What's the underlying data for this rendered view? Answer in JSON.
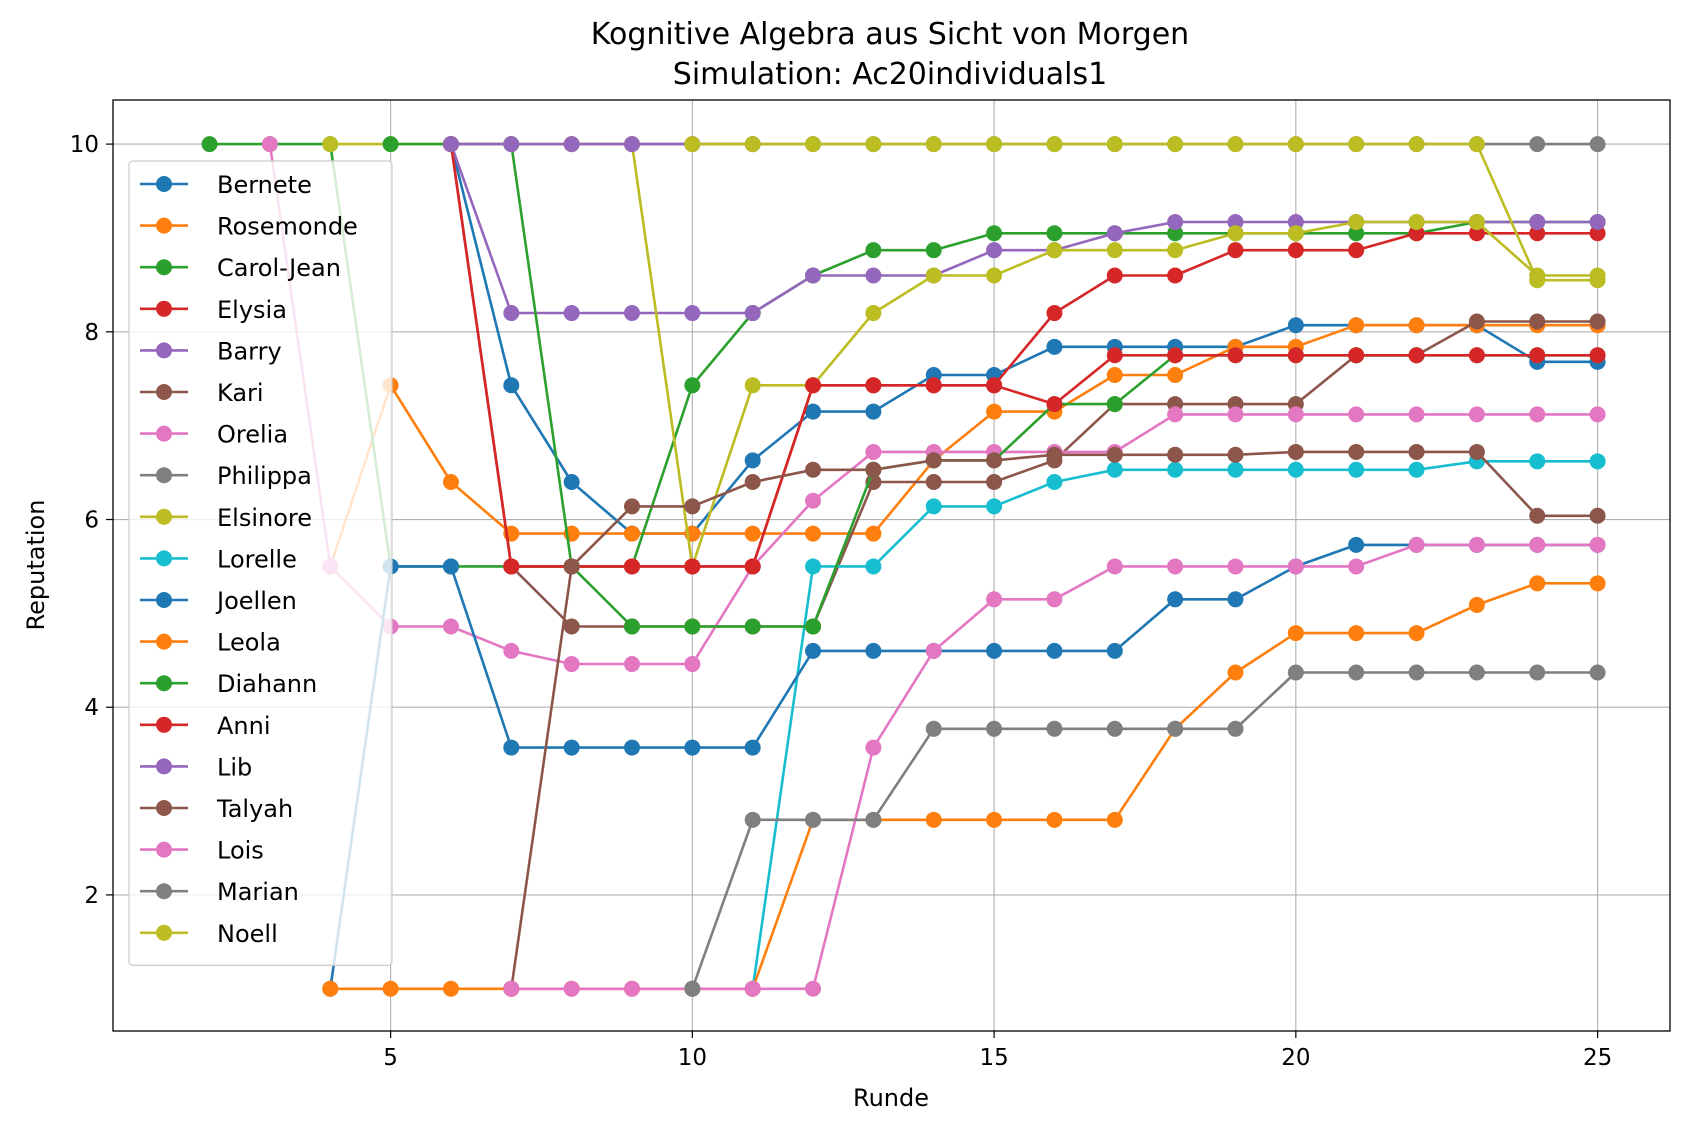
{
  "chart_data": {
    "type": "line",
    "title": "Kognitive Algebra aus Sicht von Morgen",
    "subtitle": "Simulation: Ac20individuals1",
    "xlabel": "Runde",
    "ylabel": "Reputation",
    "xlim": [
      0.4,
      26.2
    ],
    "ylim": [
      0.55,
      10.47
    ],
    "xticks": [
      5,
      10,
      15,
      20,
      25
    ],
    "yticks": [
      2,
      4,
      6,
      8,
      10
    ],
    "grid": true,
    "legend_position": "upper-left",
    "series": [
      {
        "name": "Bernete",
        "color": "#1f77b4",
        "x": [
          6,
          7,
          8,
          9,
          10,
          11,
          12,
          13,
          14,
          15,
          16,
          17,
          18,
          19,
          20,
          21,
          22,
          23,
          24,
          25
        ],
        "y": [
          10,
          7.43,
          6.4,
          5.85,
          5.85,
          6.63,
          7.15,
          7.15,
          7.54,
          7.54,
          7.84,
          7.84,
          7.84,
          7.84,
          8.07,
          8.07,
          8.07,
          8.07,
          7.68,
          7.68
        ]
      },
      {
        "name": "Rosemonde",
        "color": "#ff7f0e",
        "x": [
          4,
          5,
          6,
          7,
          8,
          9,
          10,
          11,
          12,
          13,
          14,
          15,
          16,
          17,
          18,
          19,
          20,
          21,
          22,
          23,
          24,
          25
        ],
        "y": [
          5.5,
          7.43,
          6.4,
          5.85,
          5.85,
          5.85,
          5.85,
          5.85,
          5.85,
          5.85,
          6.63,
          7.15,
          7.15,
          7.54,
          7.54,
          7.84,
          7.84,
          8.07,
          8.07,
          8.07,
          8.07,
          8.07
        ]
      },
      {
        "name": "Carol-Jean",
        "color": "#2ca02c",
        "x": [
          2,
          3,
          4,
          5,
          6,
          7,
          8,
          9,
          10,
          11,
          12,
          13,
          14,
          15,
          16,
          17,
          18,
          19,
          20,
          21,
          22,
          23,
          24,
          25
        ],
        "y": [
          10,
          10,
          10,
          5.5,
          5.5,
          5.5,
          5.5,
          5.5,
          7.43,
          8.2,
          8.6,
          8.87,
          8.87,
          9.05,
          9.05,
          9.05,
          9.05,
          9.05,
          9.05,
          9.05,
          9.05,
          9.17,
          9.17,
          9.17
        ]
      },
      {
        "name": "Elysia",
        "color": "#d62728",
        "x": [
          6,
          7,
          8,
          9,
          10,
          11,
          12,
          13,
          14,
          15,
          16,
          17,
          18,
          19,
          20,
          21,
          22,
          23,
          24,
          25
        ],
        "y": [
          10,
          5.5,
          5.5,
          5.5,
          5.5,
          5.5,
          7.43,
          7.43,
          7.43,
          7.43,
          8.2,
          8.6,
          8.6,
          8.87,
          8.87,
          8.87,
          9.05,
          9.05,
          9.05,
          9.05
        ]
      },
      {
        "name": "Barry",
        "color": "#9467bd",
        "x": [
          6,
          7,
          8,
          9,
          10,
          11,
          12,
          13,
          14,
          15,
          16,
          17,
          18,
          19,
          20,
          21,
          22,
          23,
          24,
          25
        ],
        "y": [
          10,
          8.2,
          8.2,
          8.2,
          8.2,
          8.2,
          8.6,
          8.6,
          8.6,
          8.87,
          8.87,
          9.05,
          9.17,
          9.17,
          9.17,
          9.17,
          9.17,
          9.17,
          9.17,
          9.17
        ]
      },
      {
        "name": "Kari",
        "color": "#8c564b",
        "x": [
          7,
          8,
          9,
          10,
          11,
          12,
          13,
          14,
          15,
          16,
          17,
          18,
          19,
          20,
          21,
          22,
          23,
          24,
          25
        ],
        "y": [
          5.5,
          4.86,
          4.86,
          4.86,
          4.86,
          4.86,
          6.4,
          6.4,
          6.4,
          6.63,
          7.23,
          7.23,
          7.23,
          7.23,
          7.75,
          7.75,
          8.11,
          8.11,
          8.11
        ]
      },
      {
        "name": "Orelia",
        "color": "#e377c2",
        "x": [
          3,
          4,
          5,
          6,
          7,
          8,
          9,
          10,
          11,
          12,
          13,
          14,
          15,
          16,
          17,
          18,
          19,
          20,
          21,
          22,
          23,
          24,
          25
        ],
        "y": [
          10,
          5.5,
          4.86,
          4.86,
          4.6,
          4.46,
          4.46,
          4.46,
          5.5,
          6.2,
          6.72,
          6.72,
          6.72,
          6.72,
          6.72,
          7.12,
          7.12,
          7.12,
          7.12,
          7.12,
          7.12,
          7.12,
          7.12
        ]
      },
      {
        "name": "Philippa",
        "color": "#7f7f7f",
        "x": [
          8,
          9,
          10,
          11,
          12,
          13,
          14,
          15,
          16,
          17,
          18,
          19,
          20,
          21,
          22,
          23,
          24,
          25
        ],
        "y": [
          10,
          10,
          10,
          10,
          10,
          10,
          10,
          10,
          10,
          10,
          10,
          10,
          10,
          10,
          10,
          10,
          10,
          10
        ]
      },
      {
        "name": "Elsinore",
        "color": "#bcbd22",
        "x": [
          4,
          5,
          6,
          7,
          8,
          9,
          10,
          11,
          12,
          13,
          14,
          15,
          16,
          17,
          18,
          19,
          20,
          21,
          22,
          23,
          24,
          25
        ],
        "y": [
          10,
          10,
          10,
          10,
          10,
          10,
          5.5,
          7.43,
          7.43,
          8.2,
          8.6,
          8.6,
          8.87,
          8.87,
          8.87,
          9.05,
          9.05,
          9.17,
          9.17,
          9.17,
          8.6,
          8.6
        ]
      },
      {
        "name": "Lorelle",
        "color": "#17becf",
        "x": [
          11,
          12,
          13,
          14,
          15,
          16,
          17,
          18,
          19,
          20,
          21,
          22,
          23,
          24,
          25
        ],
        "y": [
          1,
          5.5,
          5.5,
          6.14,
          6.14,
          6.4,
          6.53,
          6.53,
          6.53,
          6.53,
          6.53,
          6.53,
          6.62,
          6.62,
          6.62
        ]
      },
      {
        "name": "Joellen",
        "color": "#1f77b4",
        "x": [
          4,
          5,
          6,
          7,
          8,
          9,
          10,
          11,
          12,
          13,
          14,
          15,
          16,
          17,
          18,
          19,
          20,
          21,
          22,
          23,
          24,
          25
        ],
        "y": [
          1,
          5.5,
          5.5,
          3.57,
          3.57,
          3.57,
          3.57,
          3.57,
          4.6,
          4.6,
          4.6,
          4.6,
          4.6,
          4.6,
          5.15,
          5.15,
          5.5,
          5.73,
          5.73,
          5.73,
          5.73,
          5.73
        ]
      },
      {
        "name": "Leola",
        "color": "#ff7f0e",
        "x": [
          4,
          5,
          6,
          7,
          8,
          9,
          10,
          11,
          12,
          13,
          14,
          15,
          16,
          17,
          18,
          19,
          20,
          21,
          22,
          23,
          24,
          25
        ],
        "y": [
          1,
          1,
          1,
          1,
          1,
          1,
          1,
          1,
          2.8,
          2.8,
          2.8,
          2.8,
          2.8,
          2.8,
          3.77,
          4.37,
          4.79,
          4.79,
          4.79,
          5.09,
          5.32,
          5.32
        ]
      },
      {
        "name": "Diahann",
        "color": "#2ca02c",
        "x": [
          5,
          6,
          7,
          8,
          9,
          10,
          11,
          12,
          13,
          14,
          15,
          16,
          17,
          18,
          19,
          20,
          21,
          22,
          23,
          24,
          25
        ],
        "y": [
          10,
          10,
          10,
          5.5,
          4.86,
          4.86,
          4.86,
          4.86,
          6.53,
          6.63,
          6.63,
          7.23,
          7.23,
          7.75,
          7.75,
          7.75,
          7.75,
          7.75,
          7.75,
          7.75,
          7.75
        ]
      },
      {
        "name": "Anni",
        "color": "#d62728",
        "x": [
          6,
          7,
          8,
          9,
          10,
          11,
          12,
          13,
          14,
          15,
          16,
          17,
          18,
          19,
          20,
          21,
          22,
          23,
          24,
          25
        ],
        "y": [
          10,
          5.5,
          5.5,
          5.5,
          5.5,
          5.5,
          7.43,
          7.43,
          7.43,
          7.43,
          7.23,
          7.75,
          7.75,
          7.75,
          7.75,
          7.75,
          7.75,
          7.75,
          7.75,
          7.75
        ]
      },
      {
        "name": "Lib",
        "color": "#9467bd",
        "x": [
          6,
          7,
          8,
          9,
          10,
          11
        ],
        "y": [
          10,
          10,
          10,
          10,
          10,
          10
        ]
      },
      {
        "name": "Talyah",
        "color": "#8c564b",
        "x": [
          7,
          8,
          9,
          10,
          11,
          12,
          13,
          14,
          15,
          16,
          17,
          18,
          19,
          20,
          21,
          22,
          23,
          24,
          25
        ],
        "y": [
          1,
          5.5,
          6.14,
          6.14,
          6.4,
          6.53,
          6.53,
          6.63,
          6.63,
          6.69,
          6.69,
          6.69,
          6.69,
          6.72,
          6.72,
          6.72,
          6.72,
          6.04,
          6.04
        ]
      },
      {
        "name": "Lois",
        "color": "#e377c2",
        "x": [
          7,
          8,
          9,
          10,
          11,
          12,
          13,
          14,
          15,
          16,
          17,
          18,
          19,
          20,
          21,
          22,
          23,
          24,
          25
        ],
        "y": [
          1,
          1,
          1,
          1,
          1,
          1,
          3.57,
          4.6,
          5.15,
          5.15,
          5.5,
          5.5,
          5.5,
          5.5,
          5.5,
          5.73,
          5.73,
          5.73,
          5.73
        ]
      },
      {
        "name": "Marian",
        "color": "#7f7f7f",
        "x": [
          10,
          11,
          12,
          13,
          14,
          15,
          16,
          17,
          18,
          19,
          20,
          21,
          22,
          23,
          24,
          25
        ],
        "y": [
          1,
          2.8,
          2.8,
          2.8,
          3.77,
          3.77,
          3.77,
          3.77,
          3.77,
          3.77,
          4.37,
          4.37,
          4.37,
          4.37,
          4.37,
          4.37
        ]
      },
      {
        "name": "Noell",
        "color": "#bcbd22",
        "x": [
          10,
          11,
          12,
          13,
          14,
          15,
          16,
          17,
          18,
          19,
          20,
          21,
          22,
          23,
          24,
          25
        ],
        "y": [
          10,
          10,
          10,
          10,
          10,
          10,
          10,
          10,
          10,
          10,
          10,
          10,
          10,
          10,
          8.55,
          8.55
        ]
      }
    ]
  }
}
